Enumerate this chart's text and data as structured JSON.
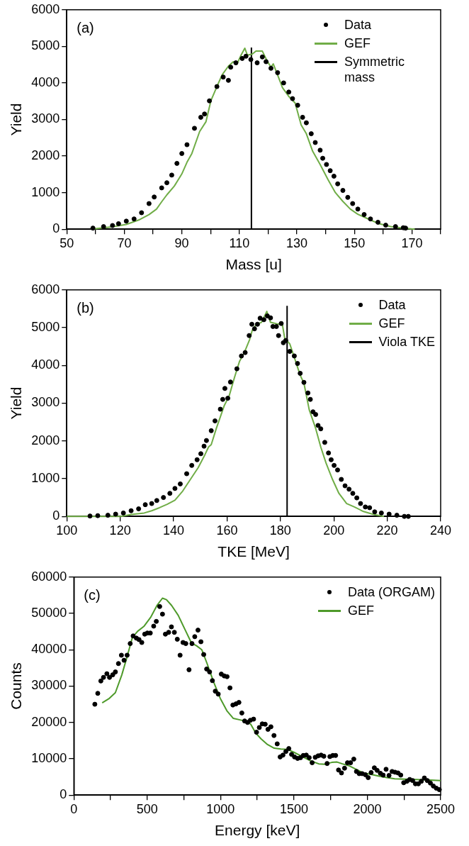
{
  "chart_data": [
    {
      "type": "scatter",
      "xlabel": "Mass [u]",
      "ylabel": "Yield",
      "annotations": [
        "(a)"
      ],
      "legend": "top right",
      "grid": false,
      "xlim": [
        50,
        180
      ],
      "xticks": [
        50,
        {
          "value": 60,
          "label": null
        },
        70,
        {
          "value": 80,
          "label": null
        },
        90,
        {
          "value": 100,
          "label": null
        },
        110,
        {
          "value": 120,
          "label": null
        },
        130,
        {
          "value": 140,
          "label": null
        },
        150,
        {
          "value": 160,
          "label": null
        },
        170,
        {
          "value": 180,
          "label": null
        }
      ],
      "ylim": [
        0,
        6000
      ],
      "yticks": [
        0,
        1000,
        2000,
        3000,
        4000,
        5000,
        6000
      ],
      "series": [
        {
          "name": "Data",
          "type": "scatter",
          "marker": "circle",
          "color": "#000000",
          "x": [
            59.1,
            62.8,
            65.9,
            68,
            70.7,
            73.4,
            76,
            78.6,
            80.4,
            83,
            84.8,
            86.5,
            88.3,
            90,
            91.8,
            94.4,
            96.6,
            97.9,
            99.6,
            102.2,
            104.4,
            106.2,
            107,
            108.8,
            111,
            112.3,
            114,
            116.2,
            118,
            119.3,
            121,
            123.3,
            125.4,
            127.2,
            128.5,
            130.3,
            132,
            133.3,
            135,
            136.4,
            138.1,
            139,
            140.3,
            141.6,
            142.9,
            144.2,
            146,
            147.7,
            149.4,
            151.2,
            153.4,
            155.6,
            158.2,
            160.9,
            164.3,
            167,
            167.8
          ],
          "values": [
            30,
            70,
            100,
            150,
            220,
            280,
            450,
            700,
            880,
            1130,
            1270,
            1480,
            1800,
            2070,
            2310,
            2760,
            3060,
            3150,
            3510,
            3900,
            4160,
            4070,
            4430,
            4550,
            4670,
            4730,
            4640,
            4550,
            4710,
            4580,
            4400,
            4280,
            4000,
            3750,
            3570,
            3390,
            3060,
            2910,
            2610,
            2370,
            2160,
            1940,
            1770,
            1600,
            1450,
            1240,
            1060,
            870,
            700,
            550,
            400,
            280,
            190,
            110,
            70,
            40,
            30
          ]
        },
        {
          "name": "GEF",
          "type": "line",
          "marker": "none",
          "color": "#70ad47",
          "x": [
            59.4,
            65.5,
            70.7,
            75,
            78.6,
            81.2,
            83,
            84.8,
            87.4,
            90,
            91.8,
            93.5,
            96.2,
            98.4,
            100.1,
            102.2,
            104,
            106.2,
            107.9,
            109.2,
            110.6,
            111.9,
            112.8,
            114.5,
            115.8,
            118,
            119.6,
            121,
            121.8,
            123.3,
            125,
            127.2,
            129.4,
            131.5,
            133.3,
            135.5,
            138.1,
            140.8,
            143.4,
            146,
            148.6,
            151.2,
            154.8,
            158.2,
            162.6,
            167,
            171
          ],
          "values": [
            10,
            60,
            130,
            250,
            400,
            550,
            750,
            940,
            1180,
            1510,
            1830,
            2070,
            2670,
            2940,
            3510,
            3900,
            4220,
            4460,
            4580,
            4520,
            4760,
            4950,
            4760,
            4790,
            4870,
            4870,
            4610,
            4430,
            4520,
            4220,
            3870,
            3630,
            3450,
            2850,
            2610,
            2130,
            1770,
            1360,
            1000,
            760,
            550,
            410,
            280,
            160,
            70,
            30,
            0
          ]
        },
        {
          "name": "Symmetric mass",
          "type": "line",
          "marker": "none",
          "color": "#000000",
          "x": [
            114.2,
            114.2
          ],
          "values": [
            0,
            4970
          ]
        }
      ]
    },
    {
      "type": "scatter",
      "xlabel": "TKE [MeV]",
      "ylabel": "Yield",
      "annotations": [
        "(b)"
      ],
      "legend": "top right",
      "grid": false,
      "xlim": [
        100,
        240
      ],
      "xticks": [
        100,
        120,
        140,
        160,
        180,
        200,
        220,
        240
      ],
      "ylim": [
        0,
        6000
      ],
      "yticks": [
        0,
        1000,
        2000,
        3000,
        4000,
        5000,
        6000
      ],
      "series": [
        {
          "name": "Data",
          "type": "scatter",
          "marker": "circle",
          "color": "#000000",
          "x": [
            108.7,
            111.6,
            115.4,
            118.3,
            121.2,
            124.1,
            126.9,
            129.4,
            131.8,
            133.7,
            136.2,
            138.6,
            140.5,
            142.5,
            144.9,
            146.8,
            148.8,
            150.2,
            151.4,
            152.3,
            154.1,
            155.5,
            157.5,
            158.4,
            159.2,
            160.3,
            161.3,
            163.7,
            165.4,
            166.8,
            168.3,
            169.3,
            170.3,
            171.4,
            172.4,
            173.8,
            175.1,
            176.3,
            177.2,
            178.5,
            179.3,
            180.3,
            181.1,
            182,
            183.5,
            185.2,
            186.4,
            187.4,
            188.8,
            190.3,
            191.2,
            192.2,
            193.2,
            194.1,
            195.1,
            196.6,
            198,
            199,
            200.1,
            201.4,
            202.8,
            204.2,
            205.7,
            207.1,
            208.6,
            210,
            211.8,
            213.4,
            215.3,
            217.8,
            220.7,
            223.6,
            226.4,
            227.9
          ],
          "values": [
            10,
            20,
            30,
            60,
            90,
            150,
            200,
            310,
            340,
            420,
            500,
            610,
            740,
            860,
            1130,
            1350,
            1500,
            1660,
            1860,
            2010,
            2270,
            2530,
            2840,
            3100,
            3390,
            3130,
            3560,
            3910,
            4250,
            4340,
            4790,
            5090,
            4970,
            5090,
            5250,
            5210,
            5310,
            5260,
            5030,
            5030,
            4790,
            5110,
            4600,
            4660,
            4370,
            4250,
            4050,
            3790,
            3550,
            3270,
            3100,
            2770,
            2700,
            2410,
            2320,
            1960,
            1680,
            1500,
            1350,
            1230,
            980,
            810,
            720,
            610,
            490,
            340,
            250,
            230,
            120,
            90,
            60,
            30,
            0,
            0
          ]
        },
        {
          "name": "GEF",
          "type": "line",
          "marker": "none",
          "color": "#70ad47",
          "x": [
            100,
            107.7,
            120.3,
            124.1,
            129,
            131.8,
            134.7,
            137.6,
            140.5,
            143.4,
            146.3,
            149.2,
            151.7,
            153.1,
            154.1,
            156,
            159,
            160.8,
            162.8,
            164.7,
            166.6,
            168.5,
            169.5,
            171,
            172.9,
            174.9,
            176.3,
            177.7,
            179.2,
            180.6,
            181.6,
            183.5,
            185.4,
            187.4,
            188.8,
            190.8,
            193.2,
            195.1,
            197.1,
            199.5,
            201.9,
            204.8,
            207.7,
            211.1,
            214.9,
            218.8
          ],
          "values": [
            0,
            0,
            0,
            50,
            90,
            150,
            230,
            320,
            430,
            670,
            980,
            1290,
            1630,
            1840,
            1900,
            2330,
            2940,
            3190,
            3680,
            4110,
            4360,
            4690,
            4940,
            5090,
            5140,
            5430,
            5140,
            5120,
            5090,
            5140,
            4720,
            4570,
            4170,
            3740,
            3530,
            2820,
            2330,
            1840,
            1410,
            980,
            610,
            340,
            250,
            130,
            50,
            0
          ]
        },
        {
          "name": "Viola TKE",
          "type": "line",
          "marker": "none",
          "color": "#000000",
          "x": [
            182.5,
            182.5
          ],
          "values": [
            0,
            5580
          ]
        }
      ]
    },
    {
      "type": "scatter",
      "xlabel": "Energy [keV]",
      "ylabel": "Counts",
      "annotations": [
        "(c)"
      ],
      "legend": "top right",
      "grid": false,
      "xlim": [
        0,
        2500
      ],
      "xticks": [
        0,
        {
          "value": 250,
          "label": null
        },
        500,
        {
          "value": 750,
          "label": null
        },
        1000,
        {
          "value": 1250,
          "label": null
        },
        1500,
        {
          "value": 1750,
          "label": null
        },
        2000,
        {
          "value": 2250,
          "label": null
        },
        2500
      ],
      "ylim": [
        0,
        60000
      ],
      "yticks": [
        0,
        10000,
        20000,
        30000,
        40000,
        50000,
        60000
      ],
      "series": [
        {
          "name": "Data (ORGAM)",
          "type": "scatter",
          "marker": "circle",
          "color": "#000000",
          "x": [
            143,
            163,
            184,
            202,
            225,
            243,
            265,
            283,
            304,
            324,
            342,
            363,
            384,
            404,
            426,
            444,
            463,
            483,
            501,
            521,
            544,
            562,
            585,
            604,
            624,
            646,
            665,
            685,
            705,
            724,
            744,
            763,
            785,
            805,
            824,
            846,
            866,
            885,
            905,
            925,
            944,
            964,
            984,
            1005,
            1025,
            1044,
            1064,
            1084,
            1105,
            1125,
            1145,
            1164,
            1184,
            1203,
            1225,
            1245,
            1264,
            1284,
            1304,
            1323,
            1343,
            1364,
            1386,
            1406,
            1425,
            1445,
            1465,
            1484,
            1504,
            1525,
            1545,
            1564,
            1584,
            1604,
            1624,
            1645,
            1665,
            1685,
            1704,
            1726,
            1745,
            1765,
            1784,
            1804,
            1824,
            1845,
            1865,
            1886,
            1908,
            1926,
            1945,
            1965,
            1987,
            2006,
            2026,
            2048,
            2067,
            2089,
            2108,
            2128,
            2148,
            2169,
            2189,
            2209,
            2228,
            2248,
            2270,
            2289,
            2309,
            2328,
            2348,
            2368,
            2389,
            2409,
            2430,
            2450,
            2470,
            2491
          ],
          "values": [
            25000,
            28000,
            31400,
            32400,
            33400,
            32400,
            33100,
            33900,
            36200,
            38500,
            37100,
            38500,
            41700,
            43800,
            43200,
            42800,
            42000,
            44300,
            44600,
            44600,
            46500,
            47800,
            51900,
            49800,
            44300,
            44800,
            46300,
            44800,
            42900,
            38500,
            42000,
            41700,
            34500,
            41700,
            43600,
            45400,
            42200,
            38700,
            34700,
            33900,
            31500,
            28600,
            27800,
            33300,
            32800,
            32600,
            29500,
            24800,
            25100,
            25500,
            22600,
            20400,
            20000,
            20600,
            20900,
            17300,
            18600,
            19600,
            19500,
            18100,
            18800,
            16400,
            14100,
            10500,
            11000,
            12000,
            12800,
            11200,
            10500,
            10100,
            10300,
            10900,
            11000,
            10300,
            8900,
            10400,
            10800,
            11000,
            10700,
            8700,
            10600,
            10900,
            10900,
            6900,
            6100,
            7400,
            8900,
            8900,
            9900,
            6500,
            5900,
            5900,
            5600,
            4800,
            6200,
            7500,
            6800,
            6000,
            5500,
            7100,
            5400,
            6500,
            6300,
            6100,
            5500,
            3400,
            3800,
            4300,
            4000,
            3100,
            3100,
            3800,
            4700,
            4000,
            3300,
            2500,
            1900,
            1500
          ]
        },
        {
          "name": "GEF",
          "type": "line",
          "marker": "none",
          "color": "#4e9a2a",
          "x": [
            193,
            238,
            283,
            327,
            363,
            399,
            435,
            479,
            523,
            568,
            604,
            631,
            666,
            711,
            756,
            801,
            836,
            872,
            908,
            952,
            997,
            1043,
            1087,
            1132,
            1168,
            1204,
            1239,
            1275,
            1320,
            1365,
            1410,
            1454,
            1499,
            1552,
            1615,
            1669,
            1713,
            1758,
            1794,
            1830,
            1874,
            1919,
            1973,
            2026,
            2080,
            2133,
            2187,
            2259,
            2330,
            2401,
            2500
          ],
          "values": [
            25400,
            26500,
            28200,
            33100,
            38100,
            43400,
            45100,
            46500,
            48900,
            52300,
            54200,
            53800,
            52200,
            49500,
            45700,
            41900,
            41100,
            40000,
            36200,
            31200,
            26700,
            23200,
            21100,
            20700,
            20400,
            19600,
            17100,
            15500,
            13900,
            12900,
            12700,
            12600,
            11800,
            10700,
            9400,
            8600,
            8500,
            9000,
            9100,
            8600,
            8100,
            7200,
            6100,
            5700,
            5200,
            4800,
            4500,
            4400,
            4300,
            4200,
            4000
          ]
        }
      ]
    }
  ]
}
